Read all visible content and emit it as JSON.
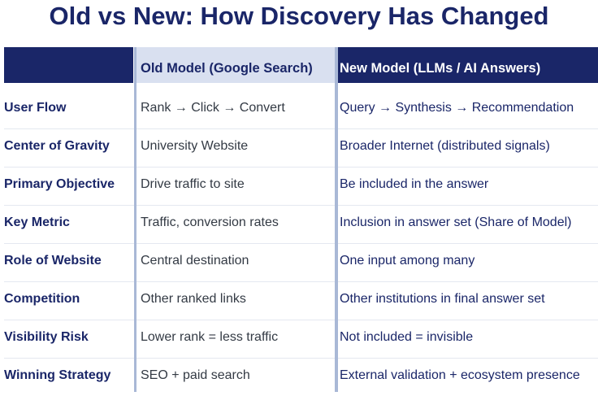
{
  "title": "Old vs New: How Discovery Has Changed",
  "colors": {
    "navy": "#1a2668",
    "old_header_bg": "#d9e0f0",
    "divider": "#a9b8d6"
  },
  "table": {
    "headers": [
      "",
      "Old Model (Google Search)",
      "New Model (LLMs / AI Answers)"
    ],
    "rows": [
      {
        "label": "User Flow",
        "old": "Rank → Click → Convert",
        "new": "Query → Synthesis → Recommendation"
      },
      {
        "label": "Center of Gravity",
        "old": "University Website",
        "new": "Broader Internet (distributed signals)"
      },
      {
        "label": "Primary Objective",
        "old": "Drive traffic to site",
        "new": "Be included in the answer"
      },
      {
        "label": "Key Metric",
        "old": "Traffic, conversion rates",
        "new": "Inclusion in answer set (Share of Model)"
      },
      {
        "label": "Role of Website",
        "old": "Central destination",
        "new": "One input among many"
      },
      {
        "label": "Competition",
        "old": "Other ranked links",
        "new": "Other institutions in final answer set"
      },
      {
        "label": "Visibility Risk",
        "old": "Lower rank = less traffic",
        "new": "Not included = invisible"
      },
      {
        "label": "Winning Strategy",
        "old": "SEO + paid search",
        "new": "External validation + ecosystem presence"
      }
    ]
  }
}
